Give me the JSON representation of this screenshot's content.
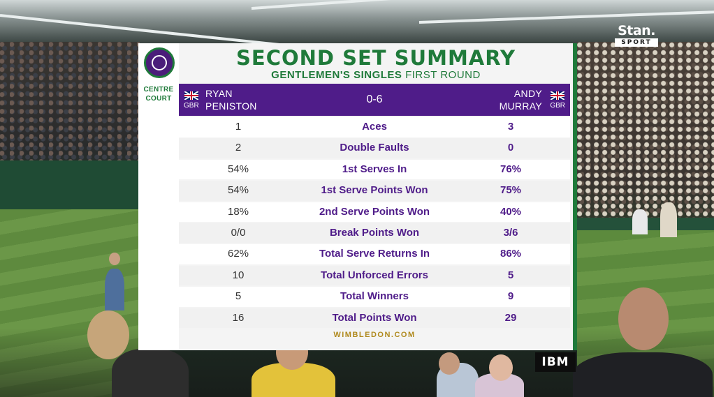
{
  "broadcaster": {
    "name": "Stan.",
    "sub": "SPORT"
  },
  "sponsor": "IBM",
  "court": {
    "line1": "CENTRE",
    "line2": "COURT"
  },
  "summary": {
    "title": "SECOND SET SUMMARY",
    "subtitle_bold": "GENTLEMEN'S SINGLES",
    "subtitle_rest": "FIRST ROUND",
    "score": "0-6",
    "player_left": {
      "first": "RYAN",
      "last": "PENISTON",
      "country": "GBR"
    },
    "player_right": {
      "first": "ANDY",
      "last": "MURRAY",
      "country": "GBR"
    },
    "stats": [
      {
        "left": "1",
        "label": "Aces",
        "right": "3"
      },
      {
        "left": "2",
        "label": "Double Faults",
        "right": "0"
      },
      {
        "left": "54%",
        "label": "1st Serves In",
        "right": "76%"
      },
      {
        "left": "54%",
        "label": "1st Serve Points Won",
        "right": "75%"
      },
      {
        "left": "18%",
        "label": "2nd Serve Points Won",
        "right": "40%"
      },
      {
        "left": "0/0",
        "label": "Break Points Won",
        "right": "3/6"
      },
      {
        "left": "62%",
        "label": "Total Serve Returns In",
        "right": "86%"
      },
      {
        "left": "10",
        "label": "Total Unforced Errors",
        "right": "5"
      },
      {
        "left": "5",
        "label": "Total Winners",
        "right": "9"
      },
      {
        "left": "16",
        "label": "Total Points Won",
        "right": "29"
      }
    ],
    "footer": "WIMBLEDON.COM"
  },
  "colors": {
    "purple": "#4f1c89",
    "green": "#1f7a3a",
    "gold": "#b08a1e"
  },
  "icons": {
    "logo": "wimbledon-logo-icon",
    "flag": "union-jack-flag-icon"
  }
}
